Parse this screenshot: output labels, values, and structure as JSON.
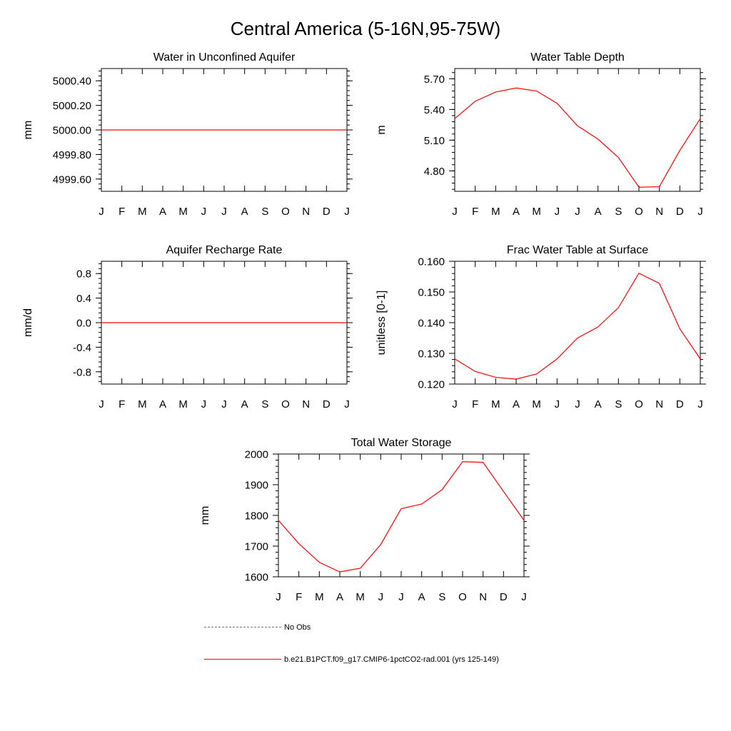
{
  "figure_title": "Central America (5-16N,95-75W)",
  "chart_data": [
    {
      "type": "line",
      "title": "Water in Unconfined Aquifer",
      "ylabel": "mm",
      "xlabel": "",
      "categories": [
        "J",
        "F",
        "M",
        "A",
        "M",
        "J",
        "J",
        "A",
        "S",
        "O",
        "N",
        "D",
        "J"
      ],
      "ylim": [
        4999.5,
        5000.5
      ],
      "yticks": [
        4999.6,
        4999.8,
        5000.0,
        5000.2,
        5000.4
      ],
      "ytick_labels": [
        "4999.60",
        "4999.80",
        "5000.00",
        "5000.20",
        "5000.40"
      ],
      "series": [
        {
          "values": [
            5000,
            5000,
            5000,
            5000,
            5000,
            5000,
            5000,
            5000,
            5000,
            5000,
            5000,
            5000,
            5000
          ],
          "color": "#ff0000"
        }
      ]
    },
    {
      "type": "line",
      "title": "Water Table Depth",
      "ylabel": "m",
      "xlabel": "",
      "categories": [
        "J",
        "F",
        "M",
        "A",
        "M",
        "J",
        "J",
        "A",
        "S",
        "O",
        "N",
        "D",
        "J"
      ],
      "ylim": [
        4.6,
        5.8
      ],
      "yticks": [
        4.8,
        5.1,
        5.4,
        5.7
      ],
      "ytick_labels": [
        "4.80",
        "5.10",
        "5.40",
        "5.70"
      ],
      "series": [
        {
          "values": [
            5.31,
            5.48,
            5.57,
            5.61,
            5.58,
            5.46,
            5.24,
            5.11,
            4.93,
            4.64,
            4.645,
            5.0,
            5.31
          ],
          "color": "#ff0000"
        }
      ]
    },
    {
      "type": "line",
      "title": "Aquifer Recharge Rate",
      "ylabel": "mm/d",
      "xlabel": "",
      "categories": [
        "J",
        "F",
        "M",
        "A",
        "M",
        "J",
        "J",
        "A",
        "S",
        "O",
        "N",
        "D",
        "J"
      ],
      "ylim": [
        -1.0,
        1.0
      ],
      "yticks": [
        -0.8,
        -0.4,
        0.0,
        0.4,
        0.8
      ],
      "ytick_labels": [
        "-0.8",
        "-0.4",
        "0.0",
        "0.4",
        "0.8"
      ],
      "series": [
        {
          "values": [
            0,
            0,
            0,
            0,
            0,
            0,
            0,
            0,
            0,
            0,
            0,
            0,
            0
          ],
          "color": "#ff0000"
        }
      ]
    },
    {
      "type": "line",
      "title": "Frac Water Table at Surface",
      "ylabel": "unitless [0-1]",
      "xlabel": "",
      "categories": [
        "J",
        "F",
        "M",
        "A",
        "M",
        "J",
        "J",
        "A",
        "S",
        "O",
        "N",
        "D",
        "J"
      ],
      "ylim": [
        0.12,
        0.16
      ],
      "yticks": [
        0.12,
        0.13,
        0.14,
        0.15,
        0.16
      ],
      "ytick_labels": [
        "0.120",
        "0.130",
        "0.140",
        "0.150",
        "0.160"
      ],
      "series": [
        {
          "values": [
            0.1282,
            0.1241,
            0.1222,
            0.1216,
            0.1233,
            0.1282,
            0.135,
            0.1386,
            0.1449,
            0.1561,
            0.1528,
            0.138,
            0.1282
          ],
          "color": "#ff0000"
        }
      ]
    },
    {
      "type": "line",
      "title": "Total Water Storage",
      "ylabel": "mm",
      "xlabel": "",
      "categories": [
        "J",
        "F",
        "M",
        "A",
        "M",
        "J",
        "J",
        "A",
        "S",
        "O",
        "N",
        "D",
        "J"
      ],
      "ylim": [
        1600,
        2000
      ],
      "yticks": [
        1600,
        1700,
        1800,
        1900,
        2000
      ],
      "ytick_labels": [
        "1600",
        "1700",
        "1800",
        "1900",
        "2000"
      ],
      "series": [
        {
          "values": [
            1784,
            1708,
            1647,
            1616,
            1628,
            1705,
            1822,
            1837,
            1884,
            1975,
            1973,
            1878,
            1784
          ],
          "color": "#ff0000"
        }
      ]
    }
  ],
  "legend": [
    {
      "label": "No Obs",
      "style": "dashed",
      "color": "#777777"
    },
    {
      "label": "b.e21.B1PCT.f09_g17.CMIP6-1pctCO2-rad.001 (yrs 125-149)",
      "style": "solid",
      "color": "#ff0000"
    }
  ]
}
